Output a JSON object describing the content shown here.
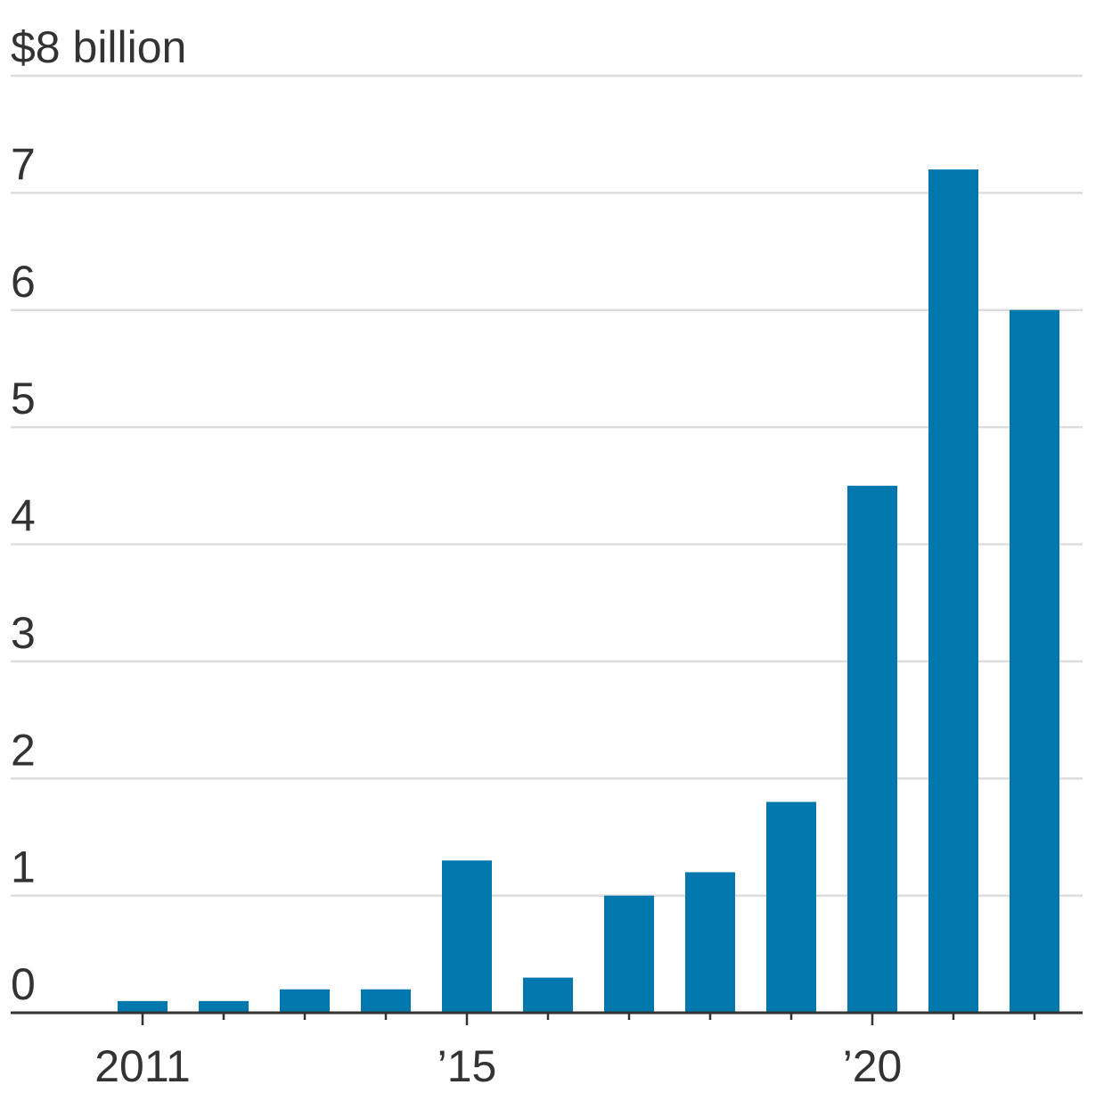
{
  "chart_data": {
    "type": "bar",
    "x": [
      2011,
      2012,
      2013,
      2014,
      2015,
      2016,
      2017,
      2018,
      2019,
      2020,
      2021,
      2022
    ],
    "values": [
      0.1,
      0.1,
      0.2,
      0.2,
      1.3,
      0.3,
      1.0,
      1.2,
      1.8,
      4.5,
      7.2,
      6.0
    ],
    "ylim": [
      0,
      8
    ],
    "yticks": [
      0,
      1,
      2,
      3,
      4,
      5,
      6,
      7,
      8
    ],
    "ytick_labels": [
      "0",
      "1",
      "2",
      "3",
      "4",
      "5",
      "6",
      "7",
      "$8 billion"
    ],
    "xtick_labels": [
      {
        "x": 2011,
        "label": "2011"
      },
      {
        "x": 2015,
        "label": "’15"
      },
      {
        "x": 2020,
        "label": "’20"
      }
    ],
    "grid": true,
    "colors": {
      "bar": "#0077AD",
      "grid": "#DDDDDD",
      "axis": "#333333",
      "text": "#333333"
    }
  }
}
